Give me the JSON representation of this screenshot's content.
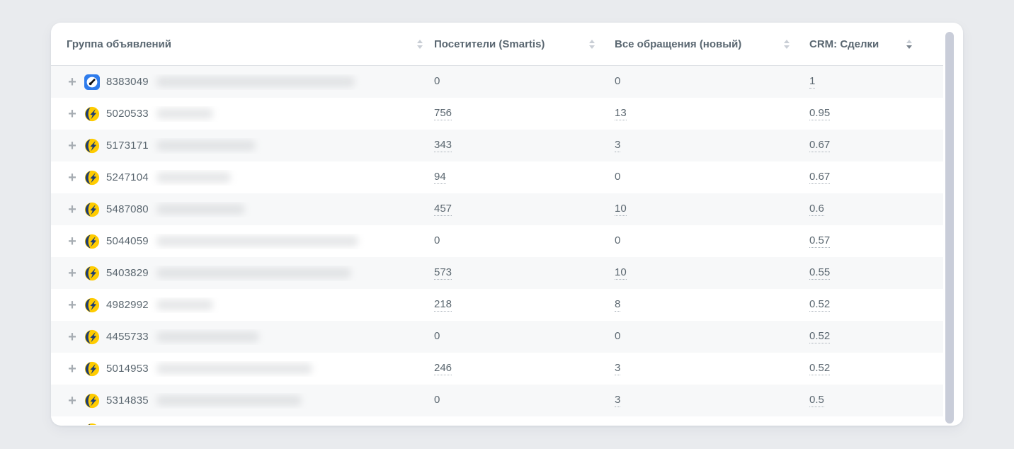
{
  "colors": {
    "page_background": "#e9ebee",
    "card_background": "#ffffff",
    "row_stripe": "#f7f8f9",
    "vk_ads_blue": "#2f7cec",
    "yandex_yellow": "#ffcc00",
    "yandex_navy": "#1f3d73",
    "scrollbar": "#c9cdd9"
  },
  "icons": {
    "plus_glyph": "+",
    "expand": "plus-icon",
    "sort": "sort-arrows-icon",
    "sources": [
      "vk-ads-icon",
      "yandex-direct-icon"
    ]
  },
  "table": {
    "columns": [
      {
        "label": "Группа объявлений",
        "sort": "none"
      },
      {
        "label": "Посетители (Smartis)",
        "sort": "none"
      },
      {
        "label": "Все обращения (новый)",
        "sort": "none"
      },
      {
        "label": "CRM: Сделки",
        "sort": "desc"
      }
    ],
    "rows": [
      {
        "id": "8383049",
        "source": "vk-ads",
        "masked_width": 280,
        "cells": [
          {
            "value": "0",
            "link": false
          },
          {
            "value": "0",
            "link": false
          },
          {
            "value": "1",
            "link": true
          }
        ]
      },
      {
        "id": "5020533",
        "source": "yandex-direct",
        "masked_width": 80,
        "cells": [
          {
            "value": "756",
            "link": true
          },
          {
            "value": "13",
            "link": true
          },
          {
            "value": "0.95",
            "link": true
          }
        ]
      },
      {
        "id": "5173171",
        "source": "yandex-direct",
        "masked_width": 140,
        "cells": [
          {
            "value": "343",
            "link": true
          },
          {
            "value": "3",
            "link": true
          },
          {
            "value": "0.67",
            "link": true
          }
        ]
      },
      {
        "id": "5247104",
        "source": "yandex-direct",
        "masked_width": 105,
        "cells": [
          {
            "value": "94",
            "link": true
          },
          {
            "value": "0",
            "link": false
          },
          {
            "value": "0.67",
            "link": true
          }
        ]
      },
      {
        "id": "5487080",
        "source": "yandex-direct",
        "masked_width": 125,
        "cells": [
          {
            "value": "457",
            "link": true
          },
          {
            "value": "10",
            "link": true
          },
          {
            "value": "0.6",
            "link": true
          }
        ]
      },
      {
        "id": "5044059",
        "source": "yandex-direct",
        "masked_width": 285,
        "cells": [
          {
            "value": "0",
            "link": false
          },
          {
            "value": "0",
            "link": false
          },
          {
            "value": "0.57",
            "link": true
          }
        ]
      },
      {
        "id": "5403829",
        "source": "yandex-direct",
        "masked_width": 275,
        "cells": [
          {
            "value": "573",
            "link": true
          },
          {
            "value": "10",
            "link": true
          },
          {
            "value": "0.55",
            "link": true
          }
        ]
      },
      {
        "id": "4982992",
        "source": "yandex-direct",
        "masked_width": 80,
        "cells": [
          {
            "value": "218",
            "link": true
          },
          {
            "value": "8",
            "link": true
          },
          {
            "value": "0.52",
            "link": true
          }
        ]
      },
      {
        "id": "4455733",
        "source": "yandex-direct",
        "masked_width": 145,
        "cells": [
          {
            "value": "0",
            "link": false
          },
          {
            "value": "0",
            "link": false
          },
          {
            "value": "0.52",
            "link": true
          }
        ]
      },
      {
        "id": "5014953",
        "source": "yandex-direct",
        "masked_width": 220,
        "cells": [
          {
            "value": "246",
            "link": true
          },
          {
            "value": "3",
            "link": true
          },
          {
            "value": "0.52",
            "link": true
          }
        ]
      },
      {
        "id": "5314835",
        "source": "yandex-direct",
        "masked_width": 205,
        "cells": [
          {
            "value": "0",
            "link": false
          },
          {
            "value": "3",
            "link": true
          },
          {
            "value": "0.5",
            "link": true
          }
        ]
      }
    ],
    "partial_row": {
      "source": "yandex-direct"
    }
  }
}
